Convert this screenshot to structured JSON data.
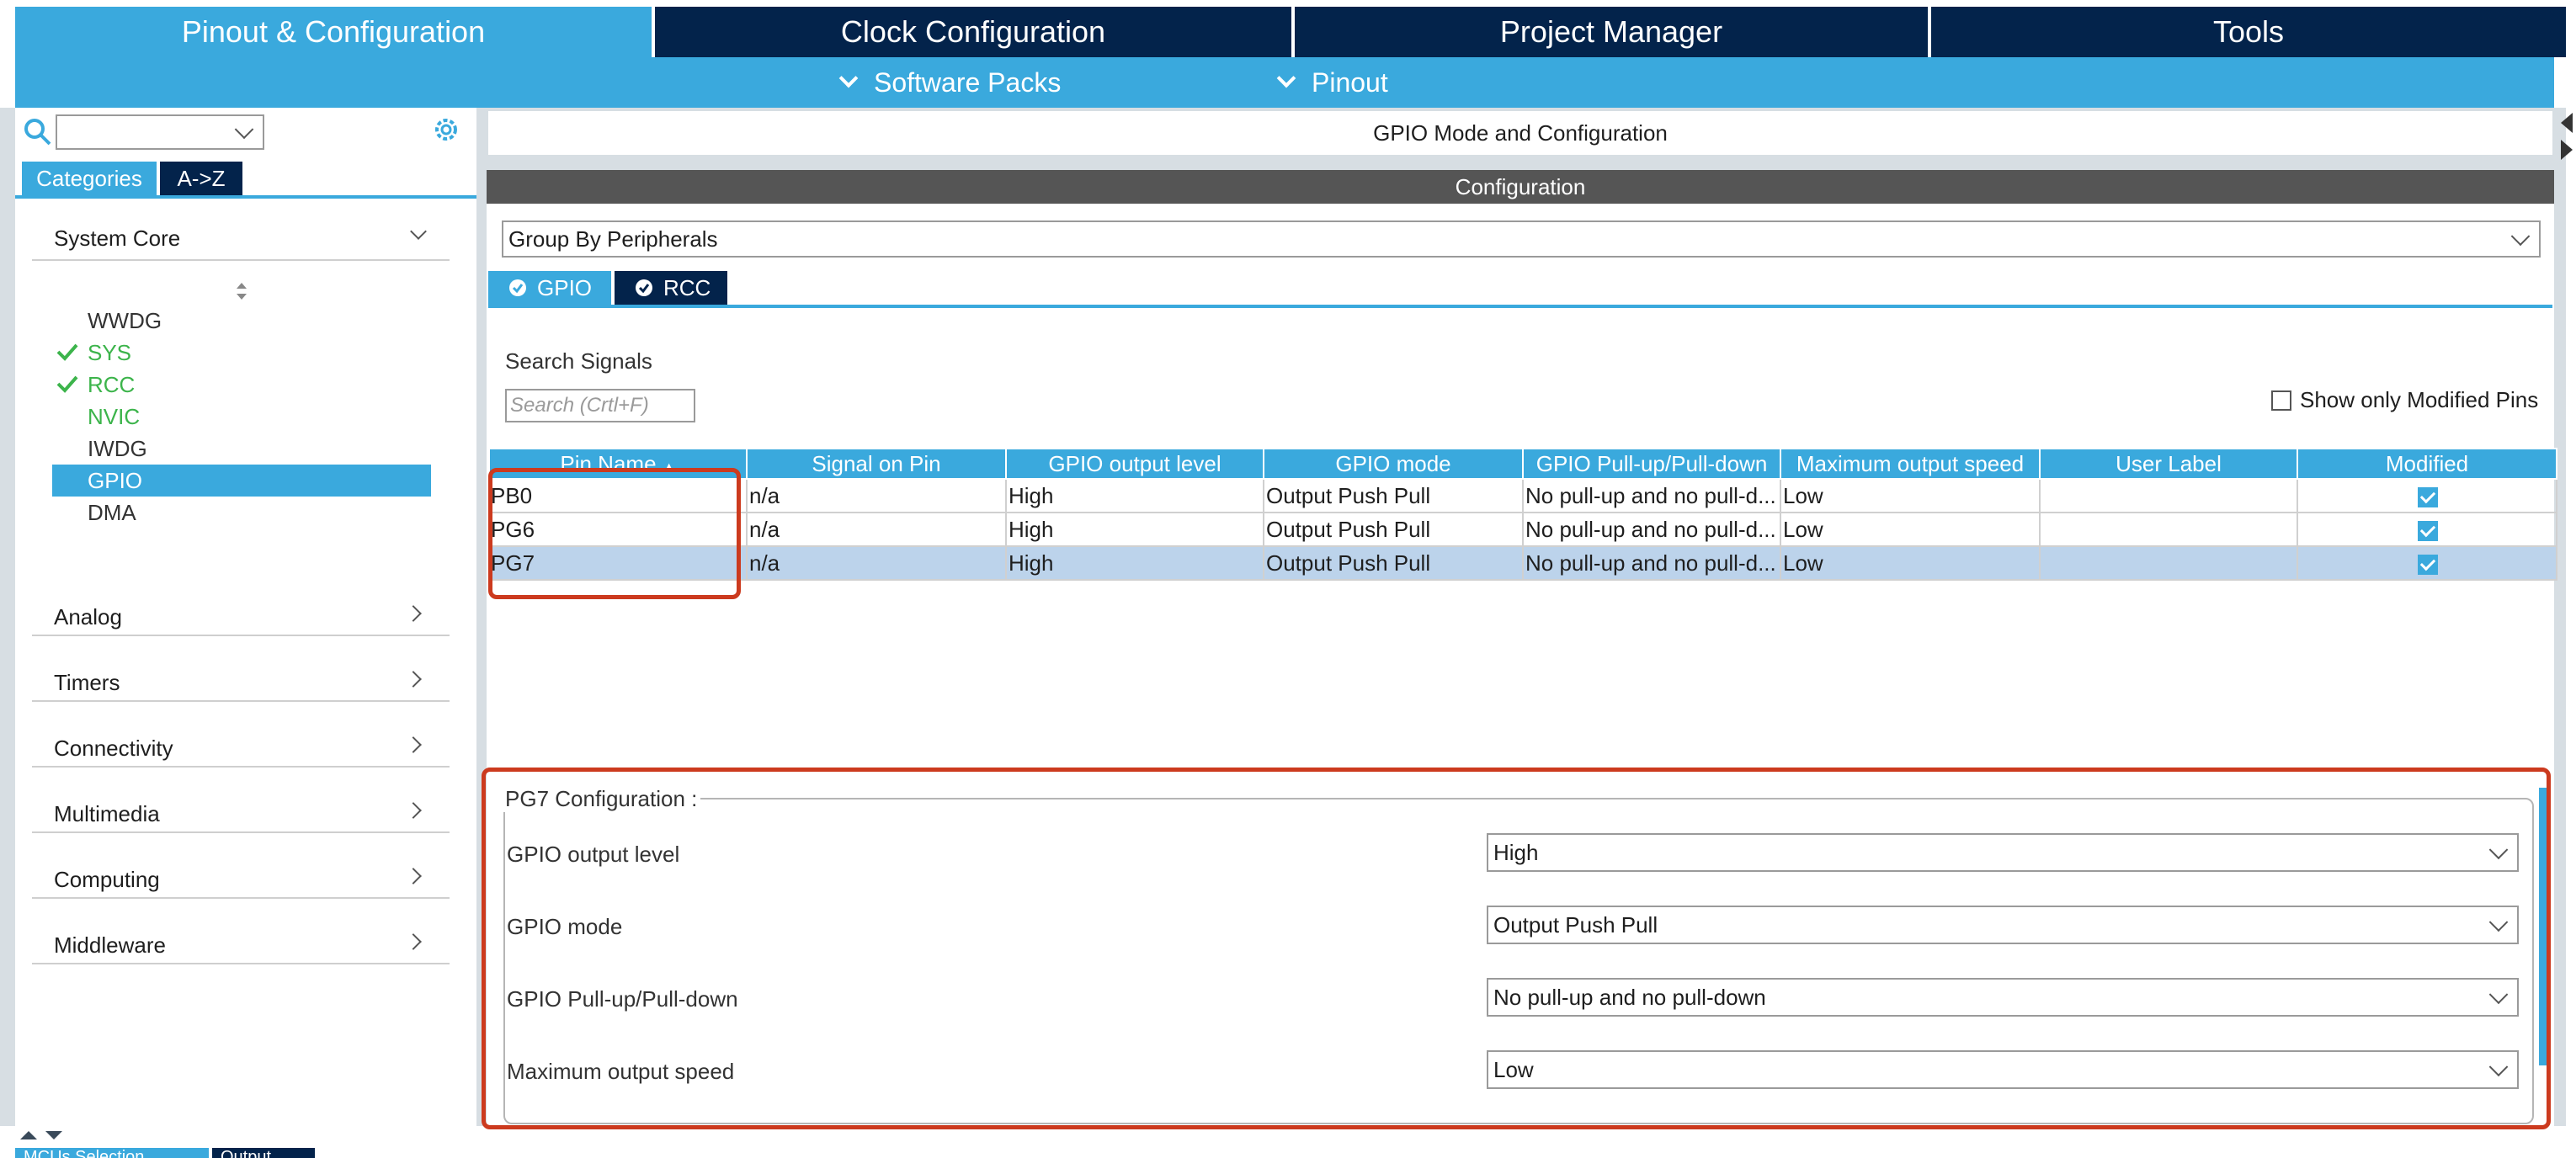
{
  "tabs": {
    "pinout": "Pinout & Configuration",
    "clock": "Clock Configuration",
    "project": "Project Manager",
    "tools": "Tools"
  },
  "subbar": {
    "software_packs": "Software Packs",
    "pinout": "Pinout"
  },
  "left": {
    "search_placeholder": "",
    "tab_categories": "Categories",
    "tab_az": "A->Z",
    "system_core": "System Core",
    "items": [
      "WWDG",
      "SYS",
      "RCC",
      "NVIC",
      "IWDG",
      "GPIO",
      "DMA"
    ],
    "categories": [
      "Analog",
      "Timers",
      "Connectivity",
      "Multimedia",
      "Computing",
      "Middleware"
    ],
    "bottom_tab_1": "MCUs Selection",
    "bottom_tab_2": "Output"
  },
  "main": {
    "title": "GPIO Mode and Configuration",
    "config_header": "Configuration",
    "group_by": "Group By Peripherals",
    "subtab_gpio": "GPIO",
    "subtab_rcc": "RCC",
    "search_signals_label": "Search Signals",
    "search_placeholder": "Search (Crtl+F)",
    "show_modified": "Show only Modified Pins"
  },
  "table": {
    "headers": [
      "Pin Name",
      "Signal on Pin",
      "GPIO output level",
      "GPIO mode",
      "GPIO Pull-up/Pull-down",
      "Maximum output speed",
      "User Label",
      "Modified"
    ],
    "rows": [
      [
        "PB0",
        "n/a",
        "High",
        "Output Push Pull",
        "No pull-up and no pull-d...",
        "Low",
        ""
      ],
      [
        "PG6",
        "n/a",
        "High",
        "Output Push Pull",
        "No pull-up and no pull-d...",
        "Low",
        ""
      ],
      [
        "PG7",
        "n/a",
        "High",
        "Output Push Pull",
        "No pull-up and no pull-d...",
        "Low",
        ""
      ]
    ]
  },
  "pin_config": {
    "title": "PG7 Configuration :",
    "output_level_label": "GPIO output level",
    "output_level_value": "High",
    "mode_label": "GPIO mode",
    "mode_value": "Output Push Pull",
    "pull_label": "GPIO Pull-up/Pull-down",
    "pull_value": "No pull-up and no pull-down",
    "speed_label": "Maximum output speed",
    "speed_value": "Low"
  },
  "colors": {
    "accent": "#3aa9dd",
    "dark_navy": "#03234b",
    "highlight_red": "#cc3a1e",
    "check_green": "#3cb44b",
    "selected_row": "#bcd3eb"
  }
}
